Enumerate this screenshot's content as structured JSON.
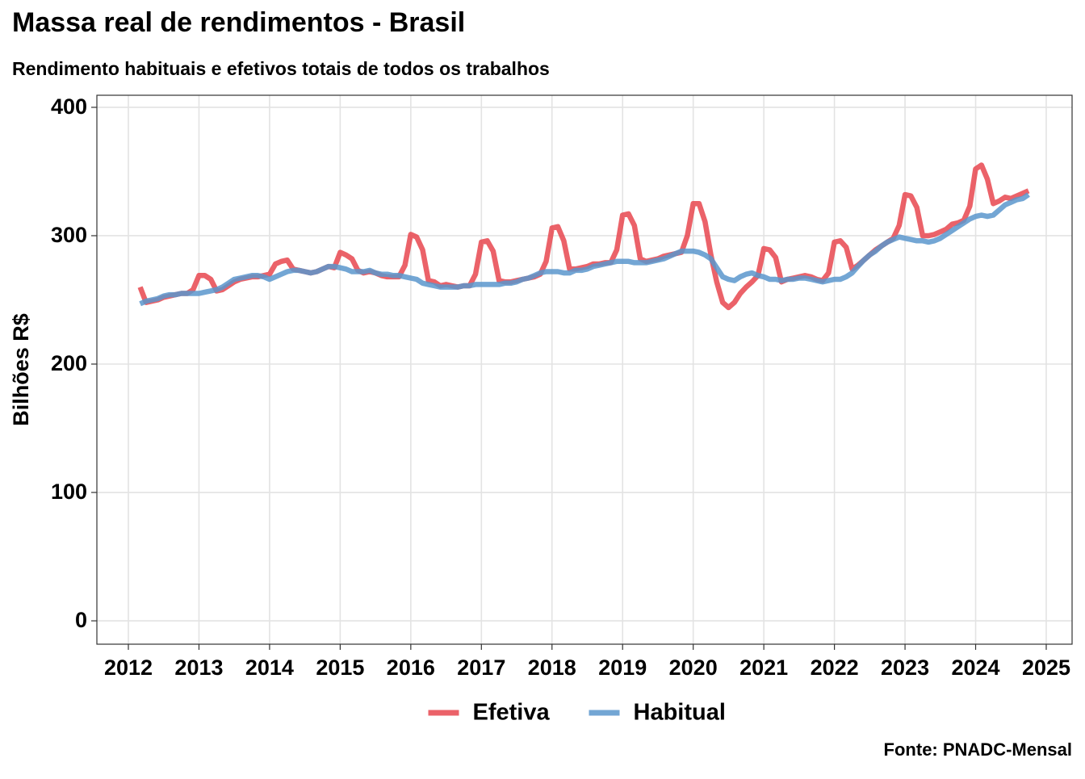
{
  "chart_data": {
    "type": "line",
    "title": "Massa real de rendimentos - Brasil",
    "subtitle": "Rendimento habituais e efetivos totais de todos os trabalhos",
    "y_label": "Bilhões R$",
    "source": "Fonte: PNADC-Mensal",
    "x": [
      2012.167,
      2012.25,
      2012.333,
      2012.417,
      2012.5,
      2012.583,
      2012.667,
      2012.75,
      2012.833,
      2012.917,
      2013.0,
      2013.083,
      2013.167,
      2013.25,
      2013.333,
      2013.417,
      2013.5,
      2013.583,
      2013.667,
      2013.75,
      2013.833,
      2013.917,
      2014.0,
      2014.083,
      2014.167,
      2014.25,
      2014.333,
      2014.417,
      2014.5,
      2014.583,
      2014.667,
      2014.75,
      2014.833,
      2014.917,
      2015.0,
      2015.083,
      2015.167,
      2015.25,
      2015.333,
      2015.417,
      2015.5,
      2015.583,
      2015.667,
      2015.75,
      2015.833,
      2015.917,
      2016.0,
      2016.083,
      2016.167,
      2016.25,
      2016.333,
      2016.417,
      2016.5,
      2016.583,
      2016.667,
      2016.75,
      2016.833,
      2016.917,
      2017.0,
      2017.083,
      2017.167,
      2017.25,
      2017.333,
      2017.417,
      2017.5,
      2017.583,
      2017.667,
      2017.75,
      2017.833,
      2017.917,
      2018.0,
      2018.083,
      2018.167,
      2018.25,
      2018.333,
      2018.417,
      2018.5,
      2018.583,
      2018.667,
      2018.75,
      2018.833,
      2018.917,
      2019.0,
      2019.083,
      2019.167,
      2019.25,
      2019.333,
      2019.417,
      2019.5,
      2019.583,
      2019.667,
      2019.75,
      2019.833,
      2019.917,
      2020.0,
      2020.083,
      2020.167,
      2020.25,
      2020.333,
      2020.417,
      2020.5,
      2020.583,
      2020.667,
      2020.75,
      2020.833,
      2020.917,
      2021.0,
      2021.083,
      2021.167,
      2021.25,
      2021.333,
      2021.417,
      2021.5,
      2021.583,
      2021.667,
      2021.75,
      2021.833,
      2021.917,
      2022.0,
      2022.083,
      2022.167,
      2022.25,
      2022.333,
      2022.417,
      2022.5,
      2022.583,
      2022.667,
      2022.75,
      2022.833,
      2022.917,
      2023.0,
      2023.083,
      2023.167,
      2023.25,
      2023.333,
      2023.417,
      2023.5,
      2023.583,
      2023.667,
      2023.75,
      2023.833,
      2023.917,
      2024.0,
      2024.083,
      2024.167,
      2024.25,
      2024.333,
      2024.417,
      2024.5,
      2024.583,
      2024.667,
      2024.75
    ],
    "series": [
      {
        "name": "Efetiva",
        "color": "#e8474f",
        "values": [
          260,
          248,
          249,
          250,
          252,
          253,
          254,
          255,
          255,
          258,
          269,
          269,
          266,
          257,
          258,
          261,
          264,
          266,
          267,
          268,
          268,
          269,
          270,
          278,
          280,
          281,
          274,
          273,
          272,
          271,
          272,
          274,
          276,
          275,
          287,
          285,
          282,
          273,
          271,
          272,
          271,
          269,
          268,
          268,
          268,
          277,
          301,
          299,
          289,
          265,
          264,
          261,
          262,
          261,
          260,
          261,
          261,
          270,
          295,
          296,
          288,
          265,
          264,
          264,
          265,
          266,
          267,
          268,
          270,
          280,
          306,
          307,
          296,
          274,
          274,
          275,
          276,
          278,
          278,
          279,
          279,
          289,
          316,
          317,
          308,
          282,
          280,
          281,
          282,
          284,
          285,
          286,
          287,
          300,
          325,
          325,
          311,
          285,
          264,
          248,
          244,
          248,
          255,
          260,
          264,
          269,
          290,
          289,
          283,
          264,
          266,
          267,
          268,
          269,
          268,
          266,
          265,
          271,
          295,
          296,
          291,
          274,
          277,
          281,
          285,
          289,
          292,
          295,
          298,
          308,
          332,
          331,
          322,
          300,
          300,
          301,
          303,
          305,
          309,
          310,
          312,
          323,
          352,
          355,
          344,
          325,
          327,
          330,
          329,
          331,
          333,
          335
        ]
      },
      {
        "name": "Habitual",
        "color": "#5b97cc",
        "values": [
          247,
          249,
          250,
          251,
          253,
          254,
          254,
          255,
          255,
          255,
          255,
          256,
          257,
          258,
          260,
          263,
          266,
          267,
          268,
          269,
          269,
          268,
          266,
          268,
          270,
          272,
          273,
          273,
          272,
          271,
          272,
          274,
          276,
          276,
          275,
          274,
          272,
          272,
          272,
          273,
          271,
          270,
          270,
          269,
          269,
          268,
          267,
          266,
          263,
          262,
          261,
          260,
          260,
          260,
          260,
          261,
          261,
          262,
          262,
          262,
          262,
          262,
          263,
          263,
          264,
          266,
          267,
          269,
          271,
          272,
          272,
          272,
          271,
          271,
          273,
          273,
          274,
          276,
          277,
          278,
          279,
          280,
          280,
          280,
          279,
          279,
          279,
          280,
          281,
          282,
          284,
          286,
          288,
          288,
          288,
          287,
          285,
          282,
          275,
          268,
          266,
          265,
          268,
          270,
          271,
          269,
          268,
          266,
          266,
          265,
          266,
          266,
          267,
          267,
          266,
          265,
          264,
          265,
          266,
          266,
          268,
          271,
          276,
          281,
          285,
          288,
          292,
          295,
          297,
          299,
          298,
          297,
          296,
          296,
          295,
          296,
          298,
          301,
          304,
          307,
          310,
          313,
          315,
          316,
          315,
          316,
          320,
          324,
          326,
          328,
          329,
          332
        ]
      }
    ],
    "xlim": [
      2011.554,
      2025.366
    ],
    "ylim": [
      -18.2,
      409.4
    ],
    "xticks": [
      2012,
      2013,
      2014,
      2015,
      2016,
      2017,
      2018,
      2019,
      2020,
      2021,
      2022,
      2023,
      2024,
      2025
    ],
    "yticks": [
      0,
      100,
      200,
      300,
      400
    ],
    "grid": true,
    "legend": "bottom"
  }
}
